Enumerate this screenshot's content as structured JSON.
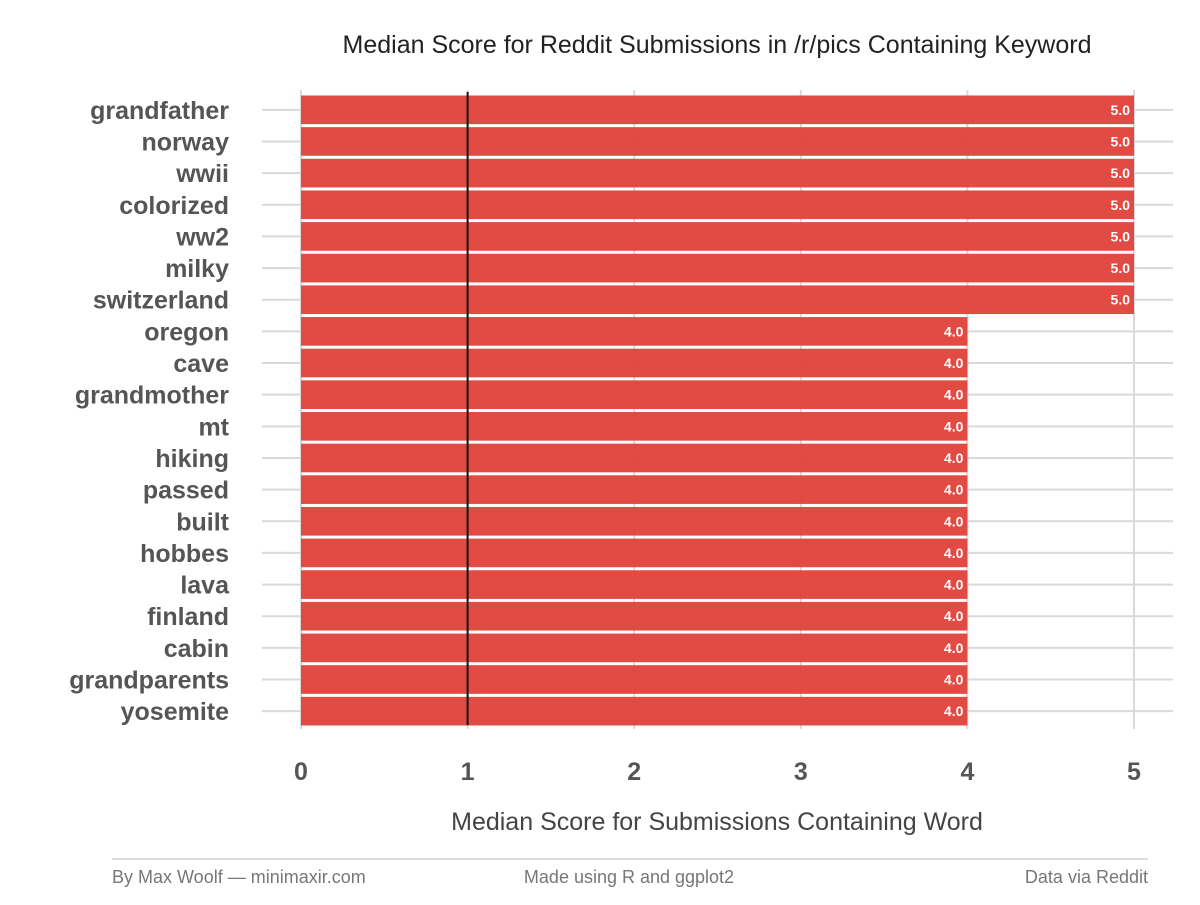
{
  "chart_data": {
    "type": "bar",
    "orientation": "horizontal",
    "title": "Median Score for Reddit Submissions in /r/pics Containing Keyword",
    "xlabel": "Median Score for Submissions Containing Word",
    "ylabel": "",
    "categories": [
      "grandfather",
      "norway",
      "wwii",
      "colorized",
      "ww2",
      "milky",
      "switzerland",
      "oregon",
      "cave",
      "grandmother",
      "mt",
      "hiking",
      "passed",
      "built",
      "hobbes",
      "lava",
      "finland",
      "cabin",
      "grandparents",
      "yosemite"
    ],
    "values": [
      5,
      5,
      5,
      5,
      5,
      5,
      5,
      4,
      4,
      4,
      4,
      4,
      4,
      4,
      4,
      4,
      4,
      4,
      4,
      4
    ],
    "value_labels": [
      "5.0",
      "5.0",
      "5.0",
      "5.0",
      "5.0",
      "5.0",
      "5.0",
      "4.0",
      "4.0",
      "4.0",
      "4.0",
      "4.0",
      "4.0",
      "4.0",
      "4.0",
      "4.0",
      "4.0",
      "4.0",
      "4.0",
      "4.0"
    ],
    "xlim": [
      0,
      5
    ],
    "xticks": [
      0,
      1,
      2,
      3,
      4,
      5
    ],
    "xtick_labels": [
      "0",
      "1",
      "2",
      "3",
      "4",
      "5"
    ],
    "reference_line": 1,
    "grid": true,
    "bar_color": "#e0413a",
    "reference_line_color": "#111111",
    "grid_color": "#d9d9d9"
  },
  "footer": {
    "left": "By Max Woolf — minimaxir.com",
    "center": "Made using R and ggplot2",
    "right": "Data via Reddit"
  }
}
